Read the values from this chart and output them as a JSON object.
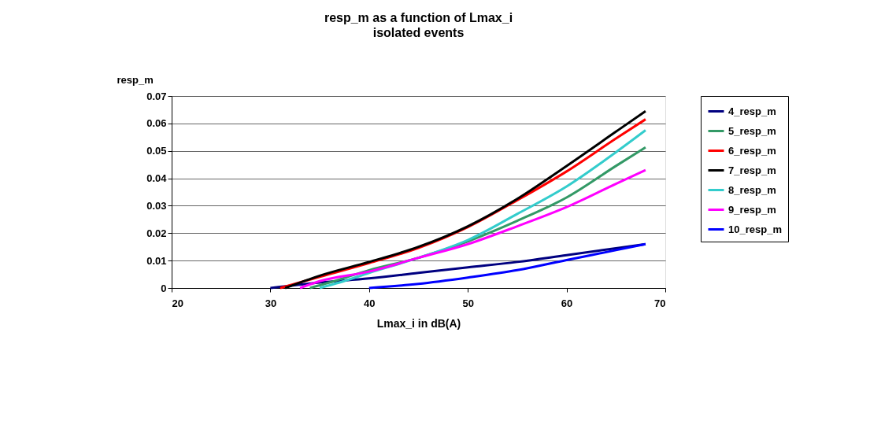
{
  "chart_data": {
    "type": "line",
    "title": "resp_m as a function of Lmax_i",
    "subtitle": "isolated events",
    "xlabel": "Lmax_i in dB(A)",
    "ylabel": "resp_m",
    "xlim": [
      20,
      70
    ],
    "xticks": [
      20,
      30,
      40,
      50,
      60,
      70
    ],
    "ylim": [
      0,
      0.07
    ],
    "yticks": [
      0,
      0.01,
      0.02,
      0.03,
      0.04,
      0.05,
      0.06,
      0.07
    ],
    "grid": "y",
    "legend": "right",
    "marker": "none",
    "line_style": "solid",
    "series": [
      {
        "name": "4_resp_m",
        "color": "#000080",
        "x": [
          30,
          35,
          40,
          45,
          50,
          55,
          60,
          65,
          68
        ],
        "values": [
          0,
          0.002,
          0.0035,
          0.0055,
          0.0075,
          0.0095,
          0.012,
          0.0145,
          0.016
        ]
      },
      {
        "name": "5_resp_m",
        "color": "#339966",
        "x": [
          34,
          36,
          40,
          45,
          50,
          55,
          60,
          65,
          68
        ],
        "values": [
          0,
          0.002,
          0.0065,
          0.011,
          0.017,
          0.0245,
          0.033,
          0.0445,
          0.0513
        ]
      },
      {
        "name": "6_resp_m",
        "color": "#ff0000",
        "x": [
          31,
          35,
          40,
          45,
          50,
          55,
          60,
          65,
          68
        ],
        "values": [
          0,
          0.0041,
          0.0091,
          0.0146,
          0.0222,
          0.032,
          0.0425,
          0.0545,
          0.0615
        ]
      },
      {
        "name": "7_resp_m",
        "color": "#000000",
        "x": [
          31.5,
          35,
          40,
          45,
          50,
          55,
          60,
          65,
          68
        ],
        "values": [
          0,
          0.0045,
          0.0095,
          0.015,
          0.0225,
          0.0325,
          0.0445,
          0.057,
          0.0645
        ]
      },
      {
        "name": "8_resp_m",
        "color": "#33cccc",
        "x": [
          35,
          37,
          40,
          45,
          50,
          55,
          60,
          65,
          68
        ],
        "values": [
          0,
          0.002,
          0.0055,
          0.011,
          0.0175,
          0.027,
          0.037,
          0.0495,
          0.0575
        ]
      },
      {
        "name": "9_resp_m",
        "color": "#ff00ff",
        "x": [
          33,
          35,
          40,
          45,
          50,
          55,
          60,
          65,
          68
        ],
        "values": [
          0,
          0.0025,
          0.006,
          0.011,
          0.016,
          0.0225,
          0.0295,
          0.038,
          0.043
        ]
      },
      {
        "name": "10_resp_m",
        "color": "#0000ff",
        "x": [
          40,
          45,
          50,
          55,
          60,
          65,
          68
        ],
        "values": [
          0,
          0.0015,
          0.0038,
          0.0065,
          0.0102,
          0.0138,
          0.016
        ]
      }
    ]
  }
}
